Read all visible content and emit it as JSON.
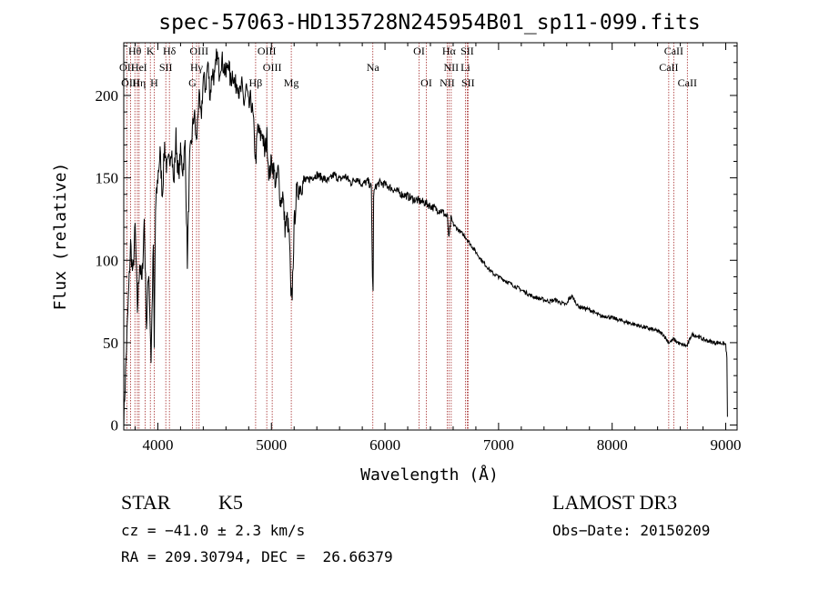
{
  "chart_data": {
    "type": "line",
    "title": "spec-57063-HD135728N245954B01_sp11-099.fits",
    "xlabel": "Wavelength (Å)",
    "ylabel": "Flux (relative)",
    "xlim": [
      3700,
      9100
    ],
    "ylim": [
      -3,
      232
    ],
    "xticks": [
      4000,
      5000,
      6000,
      7000,
      8000,
      9000
    ],
    "yticks": [
      0,
      50,
      100,
      150,
      200
    ],
    "series": [
      {
        "name": "flux",
        "x": [
          3700,
          3720,
          3740,
          3760,
          3780,
          3800,
          3820,
          3840,
          3860,
          3880,
          3900,
          3920,
          3940,
          3960,
          3968,
          3980,
          4000,
          4020,
          4040,
          4060,
          4080,
          4100,
          4120,
          4140,
          4160,
          4180,
          4200,
          4220,
          4240,
          4260,
          4280,
          4300,
          4320,
          4340,
          4360,
          4380,
          4400,
          4420,
          4440,
          4460,
          4480,
          4500,
          4520,
          4540,
          4560,
          4580,
          4600,
          4620,
          4640,
          4660,
          4680,
          4700,
          4720,
          4740,
          4760,
          4780,
          4800,
          4820,
          4840,
          4861,
          4880,
          4900,
          4920,
          4940,
          4960,
          4980,
          5000,
          5020,
          5040,
          5060,
          5080,
          5100,
          5120,
          5140,
          5160,
          5172,
          5183,
          5200,
          5220,
          5250,
          5300,
          5350,
          5400,
          5450,
          5500,
          5550,
          5600,
          5650,
          5700,
          5750,
          5800,
          5850,
          5880,
          5890,
          5895,
          5900,
          5920,
          5950,
          6000,
          6050,
          6100,
          6150,
          6200,
          6250,
          6300,
          6350,
          6400,
          6450,
          6500,
          6550,
          6563,
          6580,
          6600,
          6650,
          6700,
          6750,
          6800,
          6850,
          6900,
          6950,
          7000,
          7050,
          7100,
          7150,
          7200,
          7250,
          7300,
          7350,
          7400,
          7450,
          7500,
          7550,
          7600,
          7620,
          7650,
          7700,
          7750,
          7800,
          7850,
          7900,
          7950,
          8000,
          8050,
          8100,
          8150,
          8200,
          8250,
          8300,
          8350,
          8400,
          8450,
          8498,
          8542,
          8600,
          8662,
          8700,
          8750,
          8800,
          8850,
          8900,
          8950,
          9000,
          9010,
          9015
        ],
        "y": [
          2,
          40,
          75,
          110,
          90,
          120,
          70,
          100,
          85,
          125,
          60,
          95,
          40,
          110,
          45,
          130,
          150,
          165,
          140,
          170,
          155,
          160,
          170,
          145,
          175,
          150,
          165,
          155,
          170,
          100,
          160,
          175,
          190,
          170,
          200,
          185,
          210,
          205,
          220,
          200,
          215,
          210,
          225,
          215,
          222,
          218,
          212,
          222,
          208,
          215,
          205,
          210,
          200,
          205,
          195,
          205,
          192,
          198,
          185,
          160,
          180,
          175,
          178,
          165,
          175,
          150,
          160,
          155,
          145,
          155,
          135,
          140,
          120,
          125,
          112,
          75,
          80,
          120,
          140,
          145,
          148,
          150,
          152,
          150,
          148,
          152,
          149,
          151,
          147,
          150,
          146,
          148,
          144,
          90,
          80,
          140,
          145,
          147,
          146,
          144,
          142,
          140,
          139,
          137,
          136,
          135,
          133,
          131,
          130,
          126,
          112,
          125,
          122,
          118,
          115,
          110,
          105,
          100,
          96,
          92,
          90,
          88,
          86,
          84,
          82,
          80,
          78,
          77,
          76,
          75,
          76,
          74,
          73,
          77,
          78,
          72,
          71,
          70,
          68,
          66,
          66,
          65,
          64,
          63,
          62,
          61,
          60,
          59,
          58,
          57,
          55,
          50,
          52,
          49,
          48,
          55,
          54,
          52,
          51,
          50,
          50,
          49,
          40,
          5
        ]
      }
    ],
    "lines": [
      {
        "name": "Hθ",
        "wave": 3798,
        "row": 0
      },
      {
        "name": "OII",
        "wave": 3727,
        "row": 1
      },
      {
        "name": "OIII",
        "wave": 3760,
        "row": 2
      },
      {
        "name": "He",
        "wave": 3820,
        "row": 1
      },
      {
        "name": "Hη",
        "wave": 3835,
        "row": 2
      },
      {
        "name": "K",
        "wave": 3934,
        "row": 0
      },
      {
        "name": "I",
        "wave": 3889,
        "row": 1
      },
      {
        "name": "H",
        "wave": 3968,
        "row": 2
      },
      {
        "name": "Hδ",
        "wave": 4102,
        "row": 0
      },
      {
        "name": "SII",
        "wave": 4070,
        "row": 1
      },
      {
        "name": "OIII",
        "wave": 4363,
        "row": 0
      },
      {
        "name": "Hγ",
        "wave": 4341,
        "row": 1
      },
      {
        "name": "G",
        "wave": 4305,
        "row": 2
      },
      {
        "name": "Hβ",
        "wave": 4861,
        "row": 2
      },
      {
        "name": "OIII",
        "wave": 4959,
        "row": 0
      },
      {
        "name": "OIII",
        "wave": 5007,
        "row": 1
      },
      {
        "name": "Mg",
        "wave": 5175,
        "row": 2
      },
      {
        "name": "Na",
        "wave": 5893,
        "row": 1
      },
      {
        "name": "OI",
        "wave": 6300,
        "row": 0
      },
      {
        "name": "OI",
        "wave": 6364,
        "row": 2
      },
      {
        "name": "Hα",
        "wave": 6563,
        "row": 0
      },
      {
        "name": "SII",
        "wave": 6724,
        "row": 0
      },
      {
        "name": "NII",
        "wave": 6583,
        "row": 1
      },
      {
        "name": "Li",
        "wave": 6708,
        "row": 1
      },
      {
        "name": "NII",
        "wave": 6548,
        "row": 2
      },
      {
        "name": "SII",
        "wave": 6731,
        "row": 2
      },
      {
        "name": "CaII",
        "wave": 8542,
        "row": 0
      },
      {
        "name": "CaII",
        "wave": 8498,
        "row": 1
      },
      {
        "name": "CaII",
        "wave": 8662,
        "row": 2
      }
    ],
    "line_color": "#a52a2a"
  },
  "info": {
    "class": "STAR",
    "subclass": "K5",
    "survey": "LAMOST DR3",
    "cz": "cz = −41.0 ± 2.3 km/s",
    "obs_date": "Obs−Date: 20150209",
    "coords": "RA = 209.30794, DEC =  26.66379"
  }
}
